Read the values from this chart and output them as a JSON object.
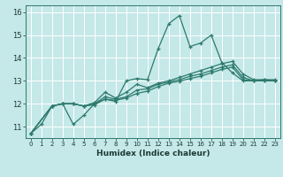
{
  "title": "",
  "xlabel": "Humidex (Indice chaleur)",
  "bg_color": "#c5e8e8",
  "grid_color": "#ffffff",
  "line_color": "#2d7a6e",
  "xlim": [
    -0.5,
    23.5
  ],
  "ylim": [
    10.5,
    16.3
  ],
  "xticks": [
    0,
    1,
    2,
    3,
    4,
    5,
    6,
    7,
    8,
    9,
    10,
    11,
    12,
    13,
    14,
    15,
    16,
    17,
    18,
    19,
    20,
    21,
    22,
    23
  ],
  "yticks": [
    11,
    12,
    13,
    14,
    15,
    16
  ],
  "lines": [
    {
      "x": [
        0,
        1,
        2,
        3,
        4,
        5,
        6,
        7,
        8,
        9,
        10,
        11,
        12,
        13,
        14,
        15,
        16,
        17,
        18,
        19,
        20,
        21,
        22,
        23
      ],
      "y": [
        10.7,
        11.1,
        11.9,
        12.0,
        11.1,
        11.5,
        12.0,
        12.2,
        12.1,
        13.0,
        13.1,
        13.05,
        14.4,
        15.5,
        15.85,
        14.5,
        14.65,
        15.0,
        13.8,
        13.35,
        13.0,
        13.0,
        13.05,
        13.0
      ]
    },
    {
      "x": [
        0,
        2,
        3,
        4,
        5,
        6,
        7,
        8,
        9,
        10,
        11,
        12,
        13,
        14,
        15,
        16,
        17,
        18,
        19,
        20,
        21,
        22,
        23
      ],
      "y": [
        10.7,
        11.9,
        12.0,
        12.0,
        11.9,
        12.05,
        12.5,
        12.25,
        12.5,
        12.85,
        12.7,
        12.9,
        13.0,
        13.15,
        13.3,
        13.45,
        13.6,
        13.75,
        13.85,
        13.3,
        13.05,
        13.05,
        13.05
      ]
    },
    {
      "x": [
        0,
        2,
        3,
        4,
        5,
        6,
        7,
        8,
        9,
        10,
        11,
        12,
        13,
        14,
        15,
        16,
        17,
        18,
        19,
        20,
        21,
        22,
        23
      ],
      "y": [
        10.7,
        11.9,
        12.0,
        12.0,
        11.9,
        12.0,
        12.3,
        12.2,
        12.3,
        12.6,
        12.65,
        12.85,
        12.95,
        13.05,
        13.2,
        13.3,
        13.45,
        13.6,
        13.7,
        13.15,
        13.0,
        13.0,
        13.0
      ]
    },
    {
      "x": [
        0,
        2,
        3,
        4,
        5,
        6,
        7,
        8,
        9,
        10,
        11,
        12,
        13,
        14,
        15,
        16,
        17,
        18,
        19,
        20,
        21,
        22,
        23
      ],
      "y": [
        10.7,
        11.9,
        12.0,
        12.0,
        11.9,
        11.95,
        12.2,
        12.15,
        12.25,
        12.45,
        12.55,
        12.75,
        12.9,
        12.98,
        13.1,
        13.2,
        13.35,
        13.5,
        13.6,
        13.05,
        13.0,
        13.0,
        13.0
      ]
    }
  ]
}
